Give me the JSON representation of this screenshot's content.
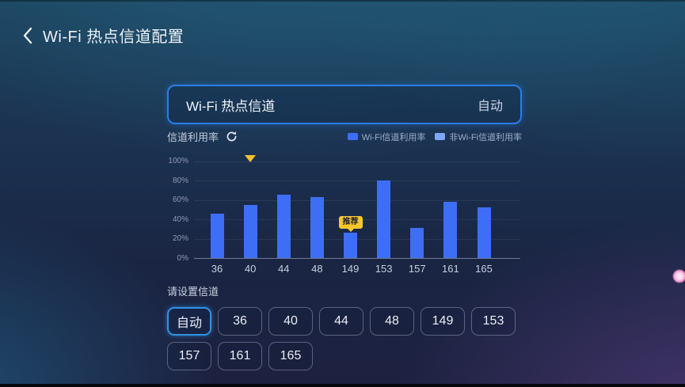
{
  "header": {
    "title": "Wi-Fi 热点信道配置"
  },
  "channel_card": {
    "label": "Wi-Fi 热点信道",
    "value": "自动"
  },
  "utilization": {
    "section_label": "信道利用率",
    "legend": [
      {
        "label": "Wi-Fi信道利用率",
        "color": "#3d6ef5"
      },
      {
        "label": "非Wi-Fi信道利用率",
        "color": "#7fa7f8"
      }
    ]
  },
  "chart_data": {
    "type": "bar",
    "title": "信道利用率",
    "categories": [
      "36",
      "40",
      "44",
      "48",
      "149",
      "153",
      "157",
      "161",
      "165"
    ],
    "values": [
      46,
      55,
      65,
      63,
      26,
      80,
      31,
      58,
      52
    ],
    "series_name": "Wi-Fi信道利用率",
    "bar_color": "#3d6ef5",
    "xlabel": "",
    "ylabel": "",
    "ylim": [
      0,
      100
    ],
    "y_ticks": [
      "0%",
      "20%",
      "40%",
      "60%",
      "80%",
      "100%"
    ],
    "grid": true,
    "legend_position": "top-right",
    "current_channel_marker": {
      "category": "40",
      "shape": "triangle-down",
      "color": "#f2c22e"
    },
    "recommended_badge": {
      "category": "149",
      "text": "推荐",
      "color": "#f6c72a"
    }
  },
  "channel_picker": {
    "label": "请设置信道",
    "options": [
      "自动",
      "36",
      "40",
      "44",
      "48",
      "149",
      "153",
      "157",
      "161",
      "165"
    ],
    "selected": "自动"
  },
  "colors": {
    "accent_border": "#2b7de9",
    "selected_button_border": "#2f94e4",
    "bar_blue": "#3d6ef5",
    "legend_light_blue": "#7fa7f8",
    "badge_yellow": "#f6c72a"
  }
}
